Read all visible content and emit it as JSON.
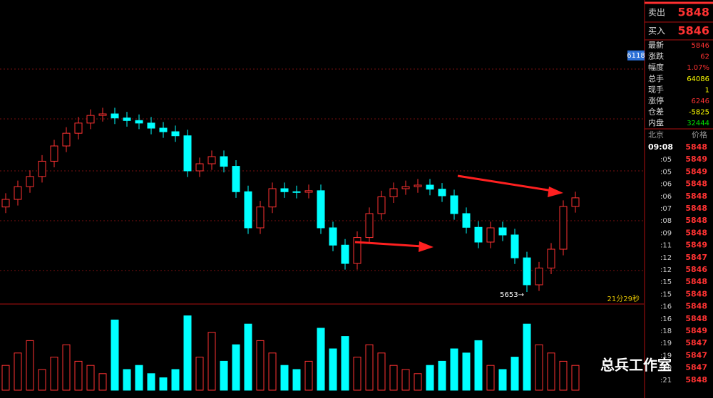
{
  "chart_data": {
    "type": "candlestick",
    "open": [
      5820,
      5835,
      5860,
      5880,
      5910,
      5940,
      5965,
      5985,
      6000,
      6003,
      5995,
      5990,
      5985,
      5975,
      5968,
      5960,
      5891,
      5905,
      5919,
      5900,
      5850,
      5779,
      5820,
      5856,
      5850,
      5849,
      5852,
      5779,
      5745,
      5709,
      5760,
      5807,
      5840,
      5856,
      5860,
      5863,
      5855,
      5842,
      5807,
      5780,
      5751,
      5779,
      5765,
      5720,
      5667,
      5700,
      5737,
      5821
    ],
    "high": [
      5847,
      5872,
      5892,
      5922,
      5952,
      5977,
      5997,
      6012,
      6015,
      6015,
      6007,
      6002,
      5997,
      5987,
      5980,
      5972,
      5917,
      5931,
      5931,
      5912,
      5862,
      5832,
      5868,
      5868,
      5862,
      5864,
      5864,
      5791,
      5757,
      5772,
      5819,
      5852,
      5868,
      5872,
      5875,
      5875,
      5867,
      5854,
      5819,
      5792,
      5791,
      5791,
      5777,
      5732,
      5712,
      5749,
      5833,
      5850
    ],
    "low": [
      5808,
      5823,
      5848,
      5868,
      5898,
      5928,
      5953,
      5973,
      5988,
      5983,
      5978,
      5973,
      5963,
      5956,
      5948,
      5879,
      5879,
      5893,
      5888,
      5838,
      5767,
      5767,
      5808,
      5838,
      5837,
      5837,
      5767,
      5733,
      5697,
      5697,
      5748,
      5795,
      5828,
      5844,
      5848,
      5843,
      5830,
      5795,
      5768,
      5739,
      5739,
      5753,
      5708,
      5653,
      5655,
      5688,
      5725,
      5809
    ],
    "close": [
      5835,
      5860,
      5880,
      5910,
      5940,
      5965,
      5985,
      6000,
      6003,
      5995,
      5990,
      5985,
      5975,
      5968,
      5960,
      5891,
      5905,
      5919,
      5900,
      5850,
      5779,
      5820,
      5856,
      5850,
      5849,
      5852,
      5779,
      5745,
      5709,
      5760,
      5807,
      5840,
      5856,
      5860,
      5863,
      5855,
      5842,
      5807,
      5780,
      5751,
      5779,
      5765,
      5720,
      5667,
      5700,
      5737,
      5821,
      5838
    ],
    "volume": [
      30,
      45,
      60,
      25,
      40,
      55,
      35,
      30,
      20,
      85,
      25,
      30,
      20,
      15,
      25,
      90,
      40,
      70,
      35,
      55,
      80,
      60,
      45,
      30,
      25,
      35,
      75,
      50,
      65,
      40,
      55,
      45,
      30,
      25,
      20,
      30,
      35,
      50,
      45,
      60,
      30,
      25,
      40,
      80,
      55,
      45,
      35,
      30
    ],
    "ylim": [
      5632,
      6227
    ],
    "volume_lim": [
      0,
      100
    ],
    "up_color": "#ff3232",
    "down_color": "#00ffff",
    "price_tag": 6118,
    "low_label": "5653→",
    "timer": "21分29秒"
  },
  "quote": {
    "sell": {
      "label": "卖出",
      "value": "5848"
    },
    "buy": {
      "label": "买入",
      "value": "5846"
    },
    "rows": [
      {
        "label": "最新",
        "value": "5846",
        "color": "#ff3232"
      },
      {
        "label": "涨跌",
        "value": "62",
        "color": "#ff3232"
      },
      {
        "label": "幅度",
        "value": "1.07%",
        "color": "#ff3232"
      },
      {
        "label": "总手",
        "value": "64086",
        "color": "#ffff00"
      },
      {
        "label": "现手",
        "value": "1",
        "color": "#ffff00"
      },
      {
        "label": "涨停",
        "value": "6246",
        "color": "#ff3232"
      },
      {
        "label": "仓差",
        "value": "-5825",
        "color": "#ffff00"
      },
      {
        "label": "内盘",
        "value": "32444",
        "color": "#00e000"
      }
    ]
  },
  "ticks": {
    "header": [
      "北京",
      "价格"
    ],
    "rows": [
      [
        "09:08",
        "5848"
      ],
      [
        ":05",
        "5849"
      ],
      [
        ":05",
        "5849"
      ],
      [
        ":06",
        "5848"
      ],
      [
        ":06",
        "5848"
      ],
      [
        ":07",
        "5848"
      ],
      [
        ":08",
        "5848"
      ],
      [
        ":09",
        "5848"
      ],
      [
        ":11",
        "5849"
      ],
      [
        ":12",
        "5847"
      ],
      [
        ":12",
        "5846"
      ],
      [
        ":15",
        "5848"
      ],
      [
        ":15",
        "5848"
      ],
      [
        ":16",
        "5848"
      ],
      [
        ":16",
        "5848"
      ],
      [
        ":18",
        "5849"
      ],
      [
        ":19",
        "5847"
      ],
      [
        ":19",
        "5847"
      ],
      [
        ":20",
        "5847"
      ],
      [
        ":21",
        "5848"
      ]
    ]
  },
  "watermark": "总兵工作室"
}
